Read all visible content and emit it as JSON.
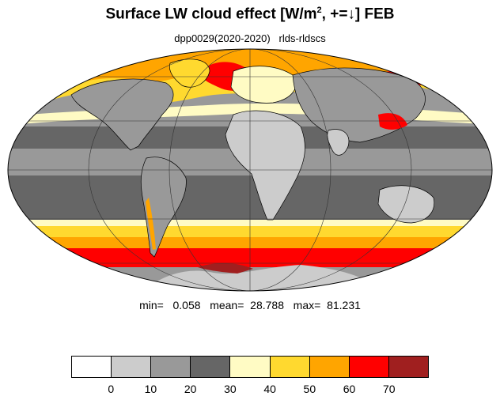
{
  "title": {
    "main": "Surface LW cloud effect [W/m",
    "sup": "2",
    "rest": ", +=↓]  FEB"
  },
  "subtitle": "dpp0029(2020-2020)   rlds-rldscs",
  "stats": "min=   0.058   mean=  28.788   max=  81.231",
  "colorbar": {
    "colors": [
      "#ffffff",
      "#cccccc",
      "#999999",
      "#666666",
      "#fffbc4",
      "#ffd92f",
      "#ffa500",
      "#ff0000",
      "#a01f1f"
    ],
    "labels": [
      "0",
      "10",
      "20",
      "30",
      "40",
      "50",
      "60",
      "70"
    ]
  },
  "map_colors": {
    "ocean_mid": "#999999",
    "tropics": "#666666",
    "land": "#cccccc",
    "arid": "#cccccc",
    "storm_yellow": "#ffd92f",
    "storm_orange": "#ffa500",
    "storm_red": "#ff0000",
    "pale": "#fffbc4",
    "dark_red": "#a01f1f"
  }
}
